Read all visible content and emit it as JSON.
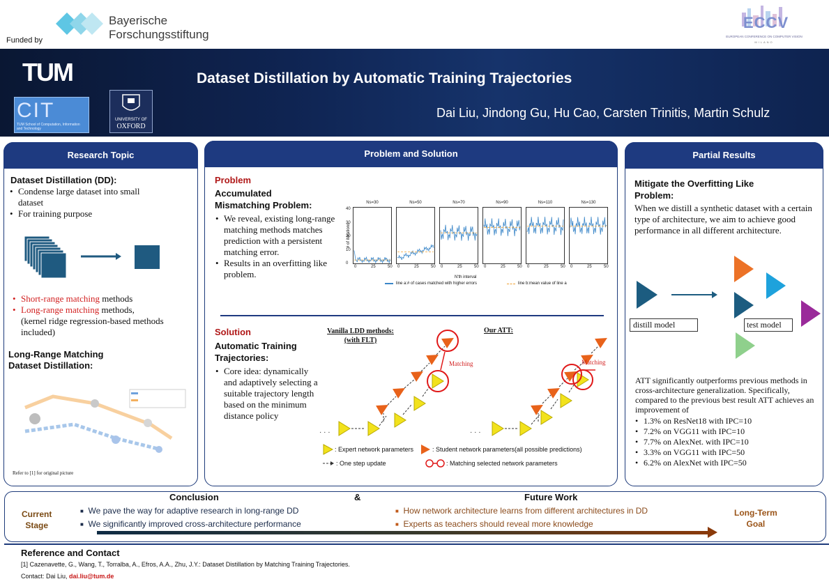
{
  "header": {
    "funded_by": "Funded by",
    "funder_line1": "Bayerische",
    "funder_line2": "Forschungsstiftung",
    "eccv": "ECCV",
    "eccv_sub": "EUROPEAN CONFERENCE ON COMPUTER VISION",
    "eccv_city": "MILANO",
    "tum": "TUM",
    "cit": "CIT",
    "cit_small": "TUM School of Computation, Information and Technology",
    "oxford_small": "UNIVERSITY OF",
    "oxford": "OXFORD",
    "title": "Dataset Distillation by Automatic Training Trajectories",
    "authors": "Dai Liu, Jindong Gu, Hu Cao, Carsten Trinitis, Martin Schulz"
  },
  "research": {
    "heading": "Research Topic",
    "dd_title": "Dataset Distillation (DD):",
    "bullets": [
      "Condense large dataset into small dataset",
      "For training purpose"
    ],
    "short_range_red": "Short-range matching",
    "short_range_rest": " methods",
    "long_range_red": "Long-range matching",
    "long_range_rest": " methods,",
    "long_range_note": "(kernel ridge regression-based methods included)",
    "lrm_title_1": "Long-Range Matching",
    "lrm_title_2": "Dataset Distillation:",
    "refer": "Refer to [1] for original picture"
  },
  "problem": {
    "heading": "Problem and Solution",
    "problem_label": "Problem",
    "problem_title_1": "Accumulated",
    "problem_title_2": "Mismatching Problem:",
    "problem_bullets": [
      "We reveal, existing long-range matching methods matches prediction with a persistent matching error.",
      "Results in an overfitting like problem."
    ],
    "solution_label": "Solution",
    "solution_title_1": "Automatic Training",
    "solution_title_2": "Trajectories:",
    "solution_bullet": "Core idea: dynamically and adaptively selecting a suitable trajectory length based on the minimum distance policy",
    "vanilla_1": "Vanilla LDD methods:",
    "vanilla_2": "(with FLT)",
    "our": "Our ATT:",
    "matching": "Matching",
    "legend_expert": ": Expert network parameters",
    "legend_student": ": Student network parameters(all possible predictions)",
    "legend_step": ": One step update",
    "legend_match": ": Matching selected network parameters",
    "colors": {
      "expert": "#f2e21c",
      "student": "#e8621a",
      "match": "#e01818"
    }
  },
  "chart_data": {
    "type": "line",
    "ylabel": "# of iterations",
    "xlabel": "N'th interval",
    "ylim": [
      0,
      40
    ],
    "yticks": [
      "0",
      "10",
      "20",
      "30",
      "40"
    ],
    "xticks": [
      "0",
      "25",
      "50"
    ],
    "panels": [
      "Ns=30",
      "Ns=50",
      "Ns=70",
      "Ns=90",
      "Ns=110",
      "Ns=130"
    ],
    "panel_means": [
      2,
      8,
      22,
      26,
      27,
      27
    ],
    "legend_a": "line a:# of cases matched with higher errors",
    "legend_b": "line b:mean value of line a",
    "colors": {
      "a": "#3a86c8",
      "b": "#f0a030"
    }
  },
  "results": {
    "heading": "Partial Results",
    "title_1": "Mitigate the Overfitting Like",
    "title_2": "Problem:",
    "para": "When we distill a synthetic dataset with a certain type of architecture, we aim to achieve good performance in all different architecture.",
    "distill": "distill model",
    "test": "test model",
    "summary": "ATT significantly outperforms previous methods in cross-architecture generalization. Specifically, compared to the previous best result ATT achieves an improvement of",
    "items": [
      "1.3% on ResNet18 with IPC=10",
      "7.2% on VGG11 with IPC=10",
      "7.7% on AlexNet. with IPC=10",
      "3.3% on VGG11 with IPC=50",
      "6.2% on AlexNet with IPC=50"
    ]
  },
  "bottom": {
    "conclusion": "Conclusion",
    "amp": "&",
    "future": "Future Work",
    "current_1": "Current",
    "current_2": "Stage",
    "goal_1": "Long-Term",
    "goal_2": "Goal",
    "conc_items": [
      "We pave the way for adaptive research in long-range DD",
      "We significantly improved cross-architecture performance"
    ],
    "future_items": [
      "How network architecture learns from different architectures  in DD",
      "Experts as teachers should reveal more knowledge"
    ]
  },
  "reference": {
    "title": "Reference and Contact",
    "ref1": "[1] Cazenavette, G., Wang, T., Torralba, A., Efros, A.A., Zhu, J.Y.:  Dataset Distillation by Matching Training Trajectories.",
    "contact_prefix": "Contact: Dai Liu, ",
    "email": "dai.liu@tum.de"
  }
}
